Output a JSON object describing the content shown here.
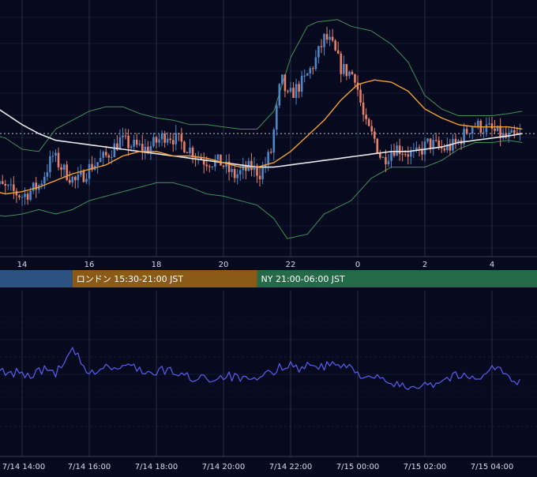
{
  "colors": {
    "background": "#070a1e",
    "grid_vertical": "#2a2f45",
    "grid_horizontal": "#151a33",
    "candle_up": "#4f86c6",
    "candle_down": "#e8806a",
    "bollinger": "#3f8f55",
    "ma_short": "#f0a030",
    "ma_long": "#e8e8e8",
    "price_line": "#bfc3d6",
    "oscillator": "#5a5ef0",
    "axis_text": "#d8dae6",
    "session_tokyo": "#2c5281",
    "session_london": "#8a5a16",
    "session_ny": "#256a48"
  },
  "sessions": [
    {
      "label": "",
      "start_hour": 12.5,
      "end_hour": 15.5,
      "color": "#2c5281"
    },
    {
      "label": "ロンドン 15:30-21:00 JST",
      "start_hour": 15.5,
      "end_hour": 21.0,
      "color": "#8a5a16"
    },
    {
      "label": "NY 21:00-06:00 JST",
      "start_hour": 21.0,
      "end_hour": 30.0,
      "color": "#256a48"
    }
  ],
  "upper_axis_ticks": [
    "14",
    "16",
    "18",
    "20",
    "22",
    "0",
    "2",
    "4"
  ],
  "lower_axis_ticks": [
    "7/14 14:00",
    "7/14 16:00",
    "7/14 18:00",
    "7/14 20:00",
    "7/14 22:00",
    "7/15 00:00",
    "7/15 02:00",
    "7/15 04:00"
  ],
  "chart_data": [
    {
      "type": "candlestick",
      "x_hours": [
        13.0,
        28.9
      ],
      "y_range": [
        0,
        100
      ],
      "reference_level": 48,
      "x_tick_labels": [
        "14",
        "16",
        "18",
        "20",
        "22",
        "0",
        "2",
        "4"
      ],
      "series": [
        {
          "kind": "candles",
          "anchors": [
            [
              13.0,
              27
            ],
            [
              13.5,
              24
            ],
            [
              14.1,
              20
            ],
            [
              14.6,
              25
            ],
            [
              15.0,
              38
            ],
            [
              15.3,
              32
            ],
            [
              15.7,
              26
            ],
            [
              16.1,
              33
            ],
            [
              16.6,
              38
            ],
            [
              17.0,
              45
            ],
            [
              17.3,
              43
            ],
            [
              17.8,
              41
            ],
            [
              18.4,
              48
            ],
            [
              19.0,
              42
            ],
            [
              19.5,
              36
            ],
            [
              20.0,
              35
            ],
            [
              20.4,
              29
            ],
            [
              20.9,
              33
            ],
            [
              21.2,
              30
            ],
            [
              21.5,
              40
            ],
            [
              21.8,
              73
            ],
            [
              22.0,
              64
            ],
            [
              22.5,
              72
            ],
            [
              22.8,
              80
            ],
            [
              23.1,
              91
            ],
            [
              23.3,
              88
            ],
            [
              23.6,
              77
            ],
            [
              24.0,
              74
            ],
            [
              24.3,
              52
            ],
            [
              24.6,
              45
            ],
            [
              24.8,
              36
            ],
            [
              25.2,
              42
            ],
            [
              25.8,
              38
            ],
            [
              26.2,
              44
            ],
            [
              26.6,
              41
            ],
            [
              27.0,
              43
            ],
            [
              27.5,
              52
            ],
            [
              28.0,
              50
            ],
            [
              28.5,
              46
            ],
            [
              28.9,
              47
            ]
          ]
        },
        {
          "kind": "bollinger-upper",
          "anchors": [
            [
              13.0,
              48
            ],
            [
              13.5,
              46
            ],
            [
              14.0,
              41
            ],
            [
              14.5,
              40
            ],
            [
              15.0,
              50
            ],
            [
              15.5,
              54
            ],
            [
              16.0,
              58
            ],
            [
              16.5,
              60
            ],
            [
              17.0,
              60
            ],
            [
              17.5,
              57
            ],
            [
              18.0,
              55
            ],
            [
              18.5,
              54
            ],
            [
              19.0,
              52
            ],
            [
              19.5,
              52
            ],
            [
              20.0,
              51
            ],
            [
              20.5,
              50
            ],
            [
              21.0,
              50
            ],
            [
              21.5,
              58
            ],
            [
              22.0,
              82
            ],
            [
              22.5,
              96
            ],
            [
              22.8,
              98
            ],
            [
              23.4,
              99
            ],
            [
              23.8,
              96
            ],
            [
              24.4,
              94
            ],
            [
              25.0,
              88
            ],
            [
              25.5,
              80
            ],
            [
              26.0,
              65
            ],
            [
              26.5,
              59
            ],
            [
              27.0,
              56
            ],
            [
              27.5,
              56
            ],
            [
              28.0,
              56
            ],
            [
              28.5,
              57
            ],
            [
              28.9,
              58
            ]
          ]
        },
        {
          "kind": "bollinger-lower",
          "anchors": [
            [
              13.0,
              12
            ],
            [
              13.5,
              11
            ],
            [
              14.0,
              12
            ],
            [
              14.5,
              14
            ],
            [
              15.0,
              12
            ],
            [
              15.5,
              14
            ],
            [
              16.0,
              18
            ],
            [
              16.5,
              20
            ],
            [
              17.0,
              22
            ],
            [
              17.5,
              24
            ],
            [
              18.0,
              26
            ],
            [
              18.5,
              26
            ],
            [
              19.0,
              24
            ],
            [
              19.5,
              21
            ],
            [
              20.0,
              20
            ],
            [
              20.5,
              18
            ],
            [
              21.0,
              16
            ],
            [
              21.5,
              10
            ],
            [
              21.9,
              1
            ],
            [
              22.5,
              3
            ],
            [
              23.0,
              12
            ],
            [
              23.8,
              18
            ],
            [
              24.4,
              28
            ],
            [
              25.0,
              33
            ],
            [
              25.5,
              33
            ],
            [
              26.0,
              33
            ],
            [
              26.5,
              36
            ],
            [
              27.0,
              41
            ],
            [
              27.5,
              44
            ],
            [
              28.0,
              44
            ],
            [
              28.5,
              45
            ],
            [
              28.9,
              44
            ]
          ]
        },
        {
          "kind": "ma-short",
          "anchors": [
            [
              13.0,
              23
            ],
            [
              13.5,
              21
            ],
            [
              14.0,
              22
            ],
            [
              14.5,
              24
            ],
            [
              15.0,
              27
            ],
            [
              15.5,
              30
            ],
            [
              16.0,
              32
            ],
            [
              16.5,
              34
            ],
            [
              17.0,
              38
            ],
            [
              17.5,
              40
            ],
            [
              18.0,
              40
            ],
            [
              18.5,
              38
            ],
            [
              19.0,
              38
            ],
            [
              19.5,
              37
            ],
            [
              20.0,
              35
            ],
            [
              20.5,
              33
            ],
            [
              21.0,
              33
            ],
            [
              21.5,
              35
            ],
            [
              22.0,
              40
            ],
            [
              22.5,
              47
            ],
            [
              23.0,
              54
            ],
            [
              23.5,
              63
            ],
            [
              24.0,
              70
            ],
            [
              24.5,
              72
            ],
            [
              25.0,
              71
            ],
            [
              25.5,
              67
            ],
            [
              26.0,
              59
            ],
            [
              26.5,
              55
            ],
            [
              27.0,
              52
            ],
            [
              27.5,
              51
            ],
            [
              28.0,
              51
            ],
            [
              28.5,
              51
            ],
            [
              28.9,
              50
            ]
          ]
        },
        {
          "kind": "ma-long",
          "anchors": [
            [
              13.0,
              62
            ],
            [
              13.5,
              57
            ],
            [
              14.0,
              52
            ],
            [
              14.5,
              48
            ],
            [
              15.0,
              45
            ],
            [
              15.5,
              44
            ],
            [
              16.0,
              43
            ],
            [
              16.5,
              42
            ],
            [
              17.0,
              41
            ],
            [
              17.5,
              40
            ],
            [
              18.0,
              39
            ],
            [
              18.5,
              38
            ],
            [
              19.0,
              37
            ],
            [
              19.5,
              36
            ],
            [
              20.0,
              35
            ],
            [
              20.5,
              34
            ],
            [
              21.0,
              33
            ],
            [
              21.5,
              33
            ],
            [
              22.0,
              34
            ],
            [
              22.5,
              35
            ],
            [
              23.0,
              36
            ],
            [
              23.5,
              37
            ],
            [
              24.0,
              38
            ],
            [
              24.5,
              39
            ],
            [
              25.0,
              40
            ],
            [
              25.5,
              40
            ],
            [
              26.0,
              41
            ],
            [
              26.5,
              42
            ],
            [
              27.0,
              44
            ],
            [
              27.5,
              45
            ],
            [
              28.0,
              46
            ],
            [
              28.5,
              47
            ],
            [
              28.9,
              48
            ]
          ]
        }
      ]
    },
    {
      "type": "line",
      "x_hours": [
        13.0,
        28.9
      ],
      "y_range": [
        0,
        100
      ],
      "x_tick_labels": [
        "7/14 14:00",
        "7/14 16:00",
        "7/14 18:00",
        "7/14 20:00",
        "7/14 22:00",
        "7/15 00:00",
        "7/15 02:00",
        "7/15 04:00"
      ],
      "grid": true,
      "series": [
        {
          "kind": "oscillator",
          "anchors": [
            [
              13.0,
              48
            ],
            [
              13.3,
              46
            ],
            [
              13.6,
              40
            ],
            [
              13.9,
              45
            ],
            [
              14.2,
              38
            ],
            [
              14.4,
              44
            ],
            [
              14.7,
              46
            ],
            [
              15.0,
              43
            ],
            [
              15.3,
              55
            ],
            [
              15.5,
              68
            ],
            [
              15.7,
              60
            ],
            [
              15.9,
              39
            ],
            [
              16.2,
              45
            ],
            [
              16.5,
              50
            ],
            [
              16.8,
              47
            ],
            [
              17.0,
              48
            ],
            [
              17.3,
              52
            ],
            [
              17.6,
              45
            ],
            [
              17.9,
              40
            ],
            [
              18.2,
              46
            ],
            [
              18.5,
              44
            ],
            [
              18.8,
              40
            ],
            [
              19.1,
              36
            ],
            [
              19.4,
              40
            ],
            [
              19.7,
              34
            ],
            [
              20.0,
              40
            ],
            [
              20.3,
              38
            ],
            [
              20.6,
              35
            ],
            [
              20.9,
              32
            ],
            [
              21.2,
              40
            ],
            [
              21.5,
              44
            ],
            [
              21.8,
              52
            ],
            [
              22.0,
              54
            ],
            [
              22.2,
              46
            ],
            [
              22.4,
              52
            ],
            [
              22.6,
              50
            ],
            [
              22.8,
              52
            ],
            [
              23.0,
              48
            ],
            [
              23.2,
              54
            ],
            [
              23.5,
              50
            ],
            [
              23.8,
              48
            ],
            [
              24.0,
              42
            ],
            [
              24.3,
              40
            ],
            [
              24.6,
              36
            ],
            [
              24.8,
              32
            ],
            [
              25.1,
              30
            ],
            [
              25.4,
              26
            ],
            [
              25.7,
              28
            ],
            [
              26.0,
              32
            ],
            [
              26.3,
              30
            ],
            [
              26.6,
              36
            ],
            [
              26.9,
              40
            ],
            [
              27.2,
              38
            ],
            [
              27.5,
              36
            ],
            [
              27.8,
              44
            ],
            [
              28.1,
              50
            ],
            [
              28.4,
              42
            ],
            [
              28.6,
              30
            ],
            [
              28.9,
              32
            ]
          ]
        }
      ]
    }
  ]
}
